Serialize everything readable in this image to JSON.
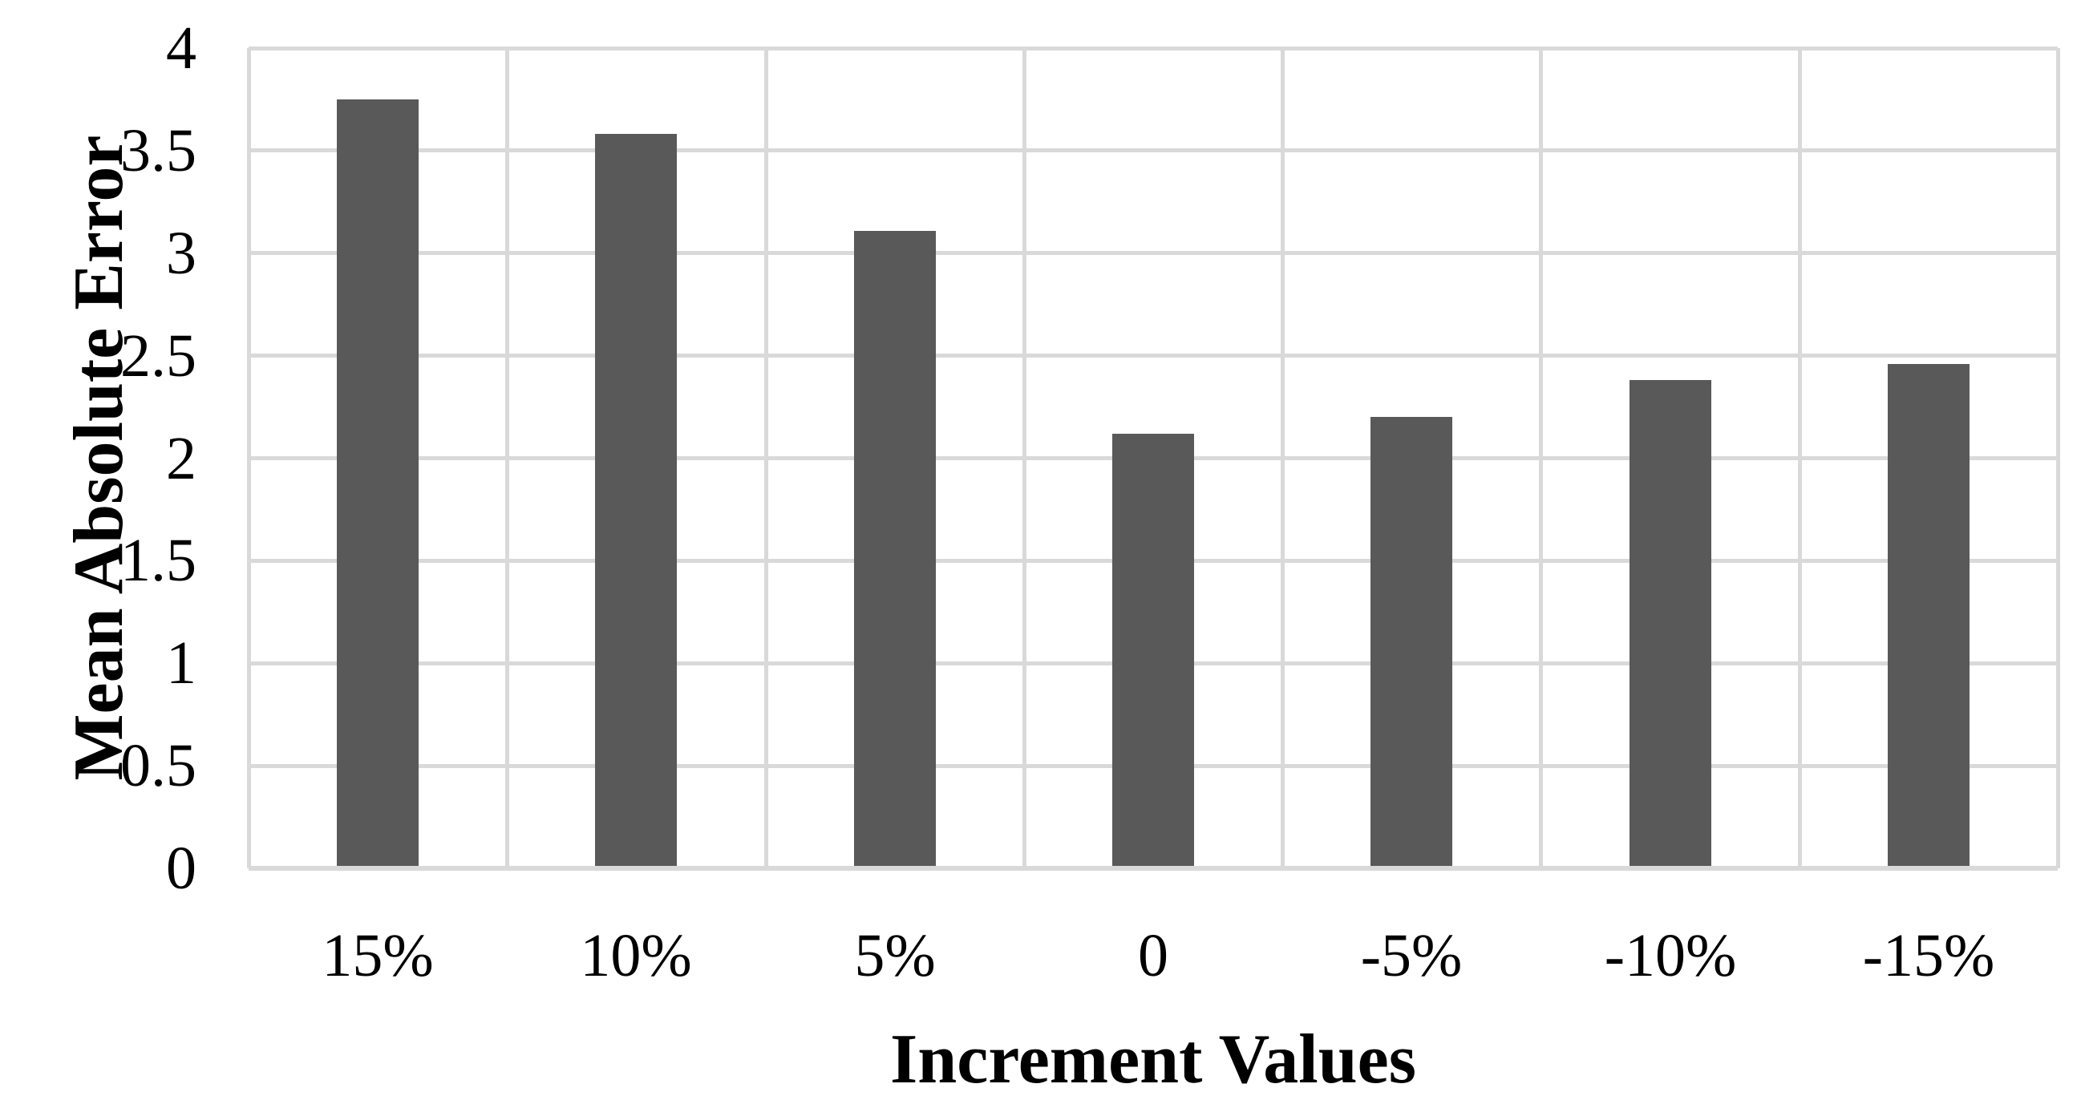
{
  "chart_data": {
    "type": "bar",
    "title": "",
    "xlabel": "Increment Values",
    "ylabel": "Mean Absolute Error",
    "categories": [
      "15%",
      "10%",
      "5%",
      "0",
      "-5%",
      "-10%",
      "-15%"
    ],
    "values": [
      3.75,
      3.58,
      3.11,
      2.12,
      2.2,
      2.38,
      2.46
    ],
    "series_name": "Mean Absolute Error",
    "ylim": [
      0,
      4
    ],
    "ytick_step": 0.5,
    "yticks": [
      4,
      3.5,
      3,
      2.5,
      2,
      1.5,
      1,
      0.5,
      0
    ],
    "ytick_labels": [
      "4",
      "3.5",
      "3",
      "2.5",
      "2",
      "1.5",
      "1",
      "0.5",
      "0"
    ],
    "grid": true,
    "legend_position": "none",
    "bar_color": "#595959",
    "gridline_color": "#d9d9d9",
    "axis_line_color": "#d9d9d9",
    "text_color": "#000000",
    "background_color": "#ffffff"
  }
}
